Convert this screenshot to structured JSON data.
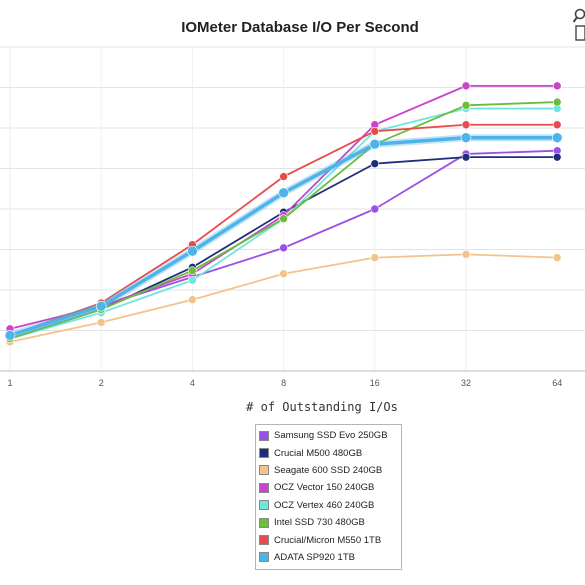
{
  "chart_data": {
    "type": "line",
    "title": "IOMeter Database I/O Per Second",
    "xlabel": "# of Outstanding I/Os",
    "ylabel": "",
    "x": [
      "1",
      "2",
      "4",
      "8",
      "16",
      "32",
      "64"
    ],
    "ylim": [
      0,
      100
    ],
    "grid": true,
    "legend_position": "bottom-center",
    "series": [
      {
        "name": "Samsung SSD Evo 250GB",
        "color": "#9b4fe6",
        "values": [
          11,
          20,
          29,
          38,
          50,
          67,
          68
        ]
      },
      {
        "name": "Crucial M500 480GB",
        "color": "#1f2e7a",
        "values": [
          10,
          19,
          32,
          49,
          64,
          66,
          66
        ]
      },
      {
        "name": "Seagate 600 SSD 240GB",
        "color": "#f2c48a",
        "values": [
          9,
          15,
          22,
          30,
          35,
          36,
          35
        ]
      },
      {
        "name": "OCZ Vector 150 240GB",
        "color": "#c944c9",
        "values": [
          13,
          20,
          30,
          48,
          76,
          88,
          88
        ]
      },
      {
        "name": "OCZ Vertex 460 240GB",
        "color": "#6ee6de",
        "values": [
          10,
          18,
          28,
          47,
          74,
          81,
          81
        ]
      },
      {
        "name": "Intel SSD 730 480GB",
        "color": "#6cbd3a",
        "values": [
          10,
          19,
          31,
          47,
          70,
          82,
          83
        ]
      },
      {
        "name": "Crucial/Micron M550 1TB",
        "color": "#e84b4b",
        "values": [
          11,
          21,
          39,
          60,
          74,
          76,
          76
        ]
      },
      {
        "name": "ADATA SP920 1TB",
        "color": "#4eb3e8",
        "values": [
          11,
          20,
          37,
          55,
          70,
          72,
          72
        ]
      }
    ]
  }
}
